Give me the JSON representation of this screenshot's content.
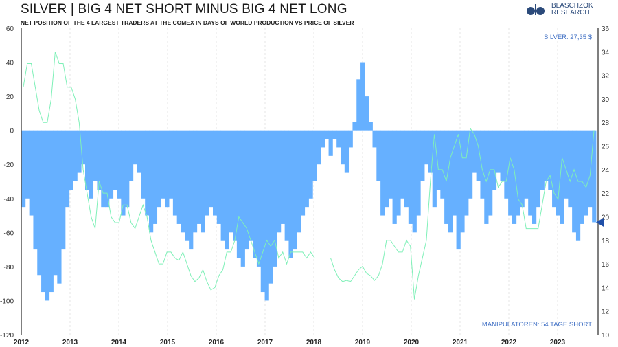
{
  "title": "SILVER | BIG 4 NET SHORT MINUS BIG 4 NET LONG",
  "subtitle": "NET POSITION OF THE 4 LARGEST TRADERS AT THE COMEX IN DAYS OF WORLD PRODUCTION VS PRICE OF SILVER",
  "logo": {
    "line1": "BLASCHZOK",
    "line2": "RESEARCH"
  },
  "colors": {
    "bars": "#66b0ff",
    "line": "#7ff0b8",
    "annotation": "#3f6fc4",
    "marker": "#1f4fa8"
  },
  "chart_data": {
    "type": "bar+line",
    "x_ticks": [
      "2012",
      "2013",
      "2014",
      "2015",
      "2016",
      "2017",
      "2018",
      "2019",
      "2020",
      "2021",
      "2022",
      "2023"
    ],
    "left_axis": {
      "ylim": [
        -120,
        60
      ],
      "ticks": [
        60,
        40,
        20,
        0,
        -20,
        -40,
        -60,
        -80,
        -100,
        -120
      ]
    },
    "right_axis": {
      "ylim": [
        10,
        36
      ],
      "ticks": [
        36,
        34,
        32,
        30,
        28,
        26,
        24,
        22,
        20,
        18,
        16,
        14,
        12,
        10
      ]
    },
    "annotations": {
      "silver": "SILVER: 27,35 $",
      "net": "MANIPULATOREN: 54 TAGE SHORT"
    },
    "grid": "vertical dashed",
    "series": [
      {
        "type": "bar",
        "axis": "left",
        "frequency": "monthly",
        "start": "2012-01",
        "values": [
          -45,
          -40,
          -50,
          -70,
          -85,
          -95,
          -100,
          -95,
          -85,
          -90,
          -70,
          -45,
          -35,
          -30,
          -25,
          -20,
          -35,
          -40,
          -30,
          -35,
          -45,
          -45,
          -40,
          -35,
          -40,
          -50,
          -45,
          -30,
          -20,
          -25,
          -40,
          -50,
          -60,
          -55,
          -45,
          -40,
          -45,
          -40,
          -50,
          -55,
          -60,
          -65,
          -70,
          -60,
          -55,
          -60,
          -50,
          -45,
          -50,
          -55,
          -65,
          -70,
          -60,
          -65,
          -75,
          -80,
          -70,
          -65,
          -75,
          -80,
          -95,
          -100,
          -90,
          -80,
          -60,
          -55,
          -65,
          -75,
          -70,
          -60,
          -50,
          -45,
          -40,
          -30,
          -20,
          -10,
          -5,
          -15,
          -5,
          -10,
          -20,
          -25,
          -10,
          5,
          30,
          40,
          20,
          5,
          -10,
          -30,
          -50,
          -45,
          -40,
          -55,
          -50,
          -40,
          -45,
          -55,
          -60,
          -50,
          -30,
          -20,
          -25,
          -45,
          -35,
          -40,
          -55,
          -60,
          -50,
          -70,
          -60,
          -50,
          -40,
          -25,
          -30,
          -40,
          -55,
          -50,
          -35,
          -25,
          -30,
          -40,
          -50,
          -55,
          -50,
          -45,
          -40,
          -50,
          -55,
          -45,
          -35,
          -30,
          -35,
          -45,
          -50,
          -55,
          -40,
          -45,
          -60,
          -65,
          -55,
          -50,
          -45,
          -54
        ]
      },
      {
        "type": "line",
        "axis": "right",
        "frequency": "monthly",
        "start": "2012-01",
        "values": [
          31,
          33,
          33,
          31,
          29,
          28,
          28,
          30,
          34,
          33,
          33,
          31,
          31,
          30,
          28,
          24,
          22,
          20,
          19,
          23,
          22,
          22,
          20,
          19.5,
          19.5,
          21,
          21,
          19.5,
          19,
          20,
          21,
          20,
          18,
          17,
          16,
          16,
          17,
          17,
          16.5,
          16.3,
          17,
          16,
          15,
          14.5,
          14.8,
          15.5,
          14.5,
          13.8,
          14,
          15,
          15.5,
          17,
          17,
          18,
          20,
          19.5,
          19,
          18,
          17,
          16,
          17,
          18,
          17.5,
          18,
          16.5,
          17,
          16,
          17,
          17,
          17,
          17,
          16.5,
          17,
          16.5,
          16.5,
          16.5,
          16.5,
          16.5,
          15.5,
          14.8,
          14.5,
          14.6,
          14.5,
          15,
          15.5,
          15.8,
          15.2,
          15,
          14.6,
          15,
          16,
          18,
          18,
          17.5,
          17,
          17,
          18,
          17.5,
          13,
          15,
          16.5,
          18,
          23,
          27,
          24,
          24,
          23,
          25,
          26,
          27,
          25,
          25,
          27.5,
          27,
          26,
          24,
          23,
          24,
          24,
          22.5,
          23,
          23,
          25,
          24,
          21.5,
          21,
          19,
          19,
          19,
          19,
          21,
          23,
          23.5,
          22,
          21.5,
          25,
          24,
          23,
          24,
          23,
          23,
          22.5,
          23.5,
          27.35
        ]
      }
    ]
  }
}
